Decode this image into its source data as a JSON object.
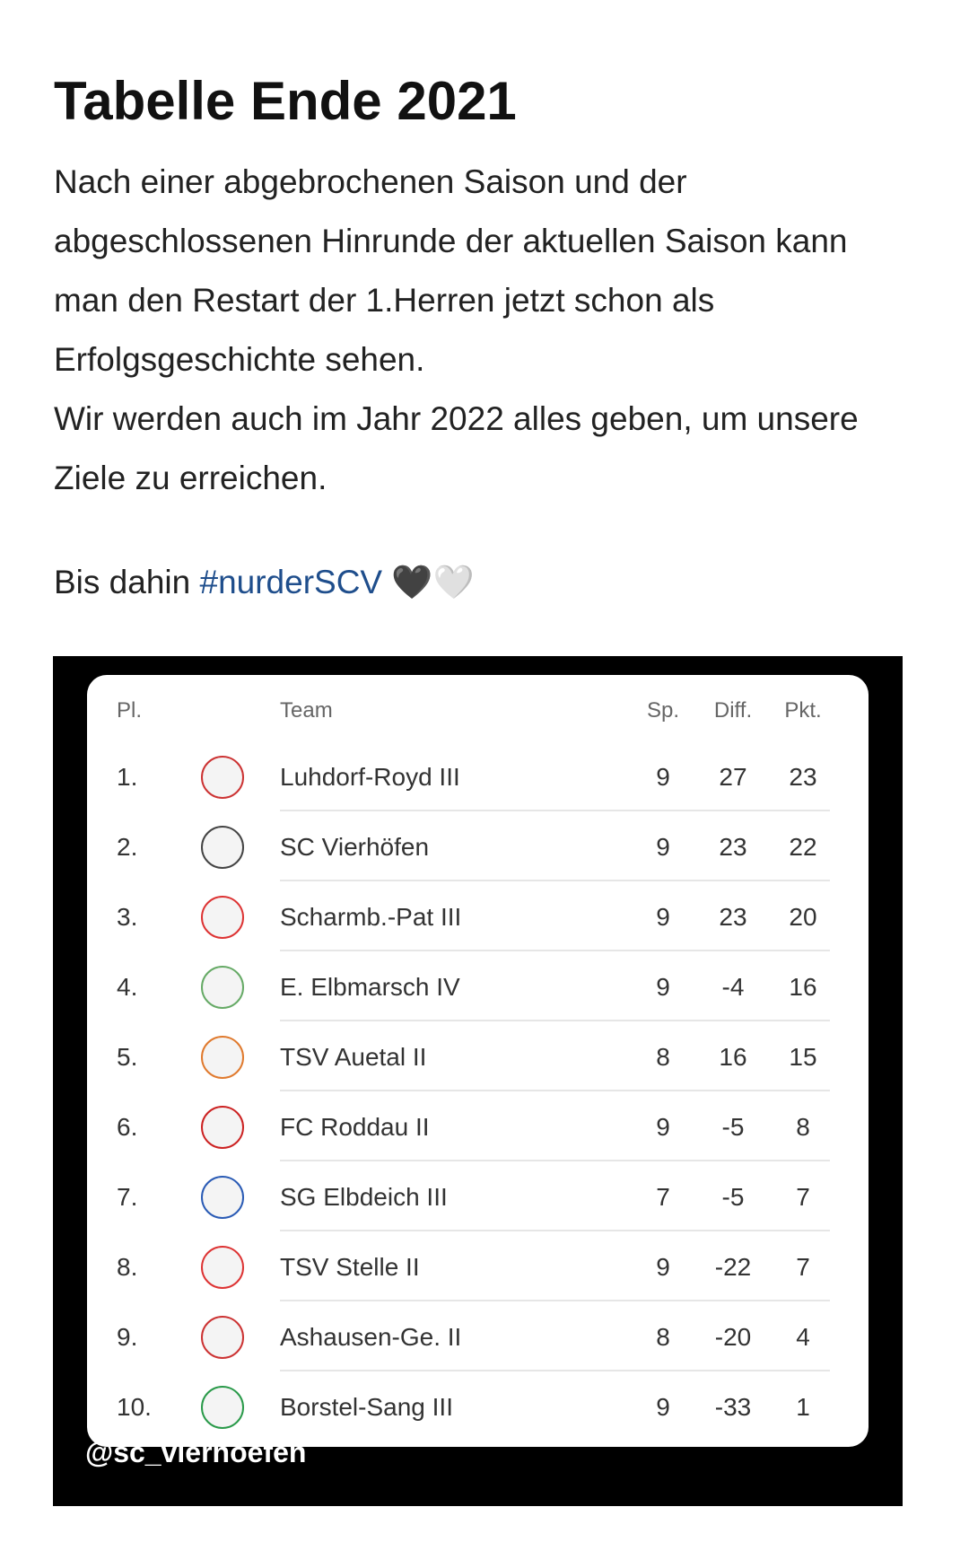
{
  "header": {
    "title": "Tabelle Ende 2021"
  },
  "body": {
    "paragraphs": [
      "Nach einer abgebrochenen Saison und der abgeschlossenen Hinrunde der aktuellen Saison kann man den Restart der 1.Herren jetzt schon als Erfolgsgeschichte sehen.",
      "Wir werden auch im Jahr 2022 alles geben, um unsere Ziele zu erreichen."
    ],
    "closing": "Bis dahin",
    "hashtag": "#nurderSCV",
    "emoji": "🖤🤍"
  },
  "table": {
    "columns": [
      "Pl.",
      "Team",
      "Sp.",
      "Diff.",
      "Pkt."
    ],
    "rows": [
      [
        "1.",
        "Luhdorf-Royd III",
        9,
        27,
        23
      ],
      [
        "2.",
        "SC Vierhöfen",
        9,
        23,
        22
      ],
      [
        "3.",
        "Scharmb.-Pat III",
        9,
        23,
        20
      ],
      [
        "4.",
        "E. Elbmarsch IV",
        9,
        -4,
        16
      ],
      [
        "5.",
        "TSV Auetal II",
        8,
        16,
        15
      ],
      [
        "6.",
        "FC Roddau II",
        9,
        -5,
        8
      ],
      [
        "7.",
        "SG Elbdeich III",
        7,
        -5,
        7
      ],
      [
        "8.",
        "TSV Stelle II",
        9,
        -22,
        7
      ],
      [
        "9.",
        "Ashausen-Ge. II",
        8,
        -20,
        4
      ],
      [
        "10.",
        "Borstel-Sang III",
        9,
        -33,
        1
      ]
    ],
    "watermark": "@sc_vierhoefen"
  }
}
